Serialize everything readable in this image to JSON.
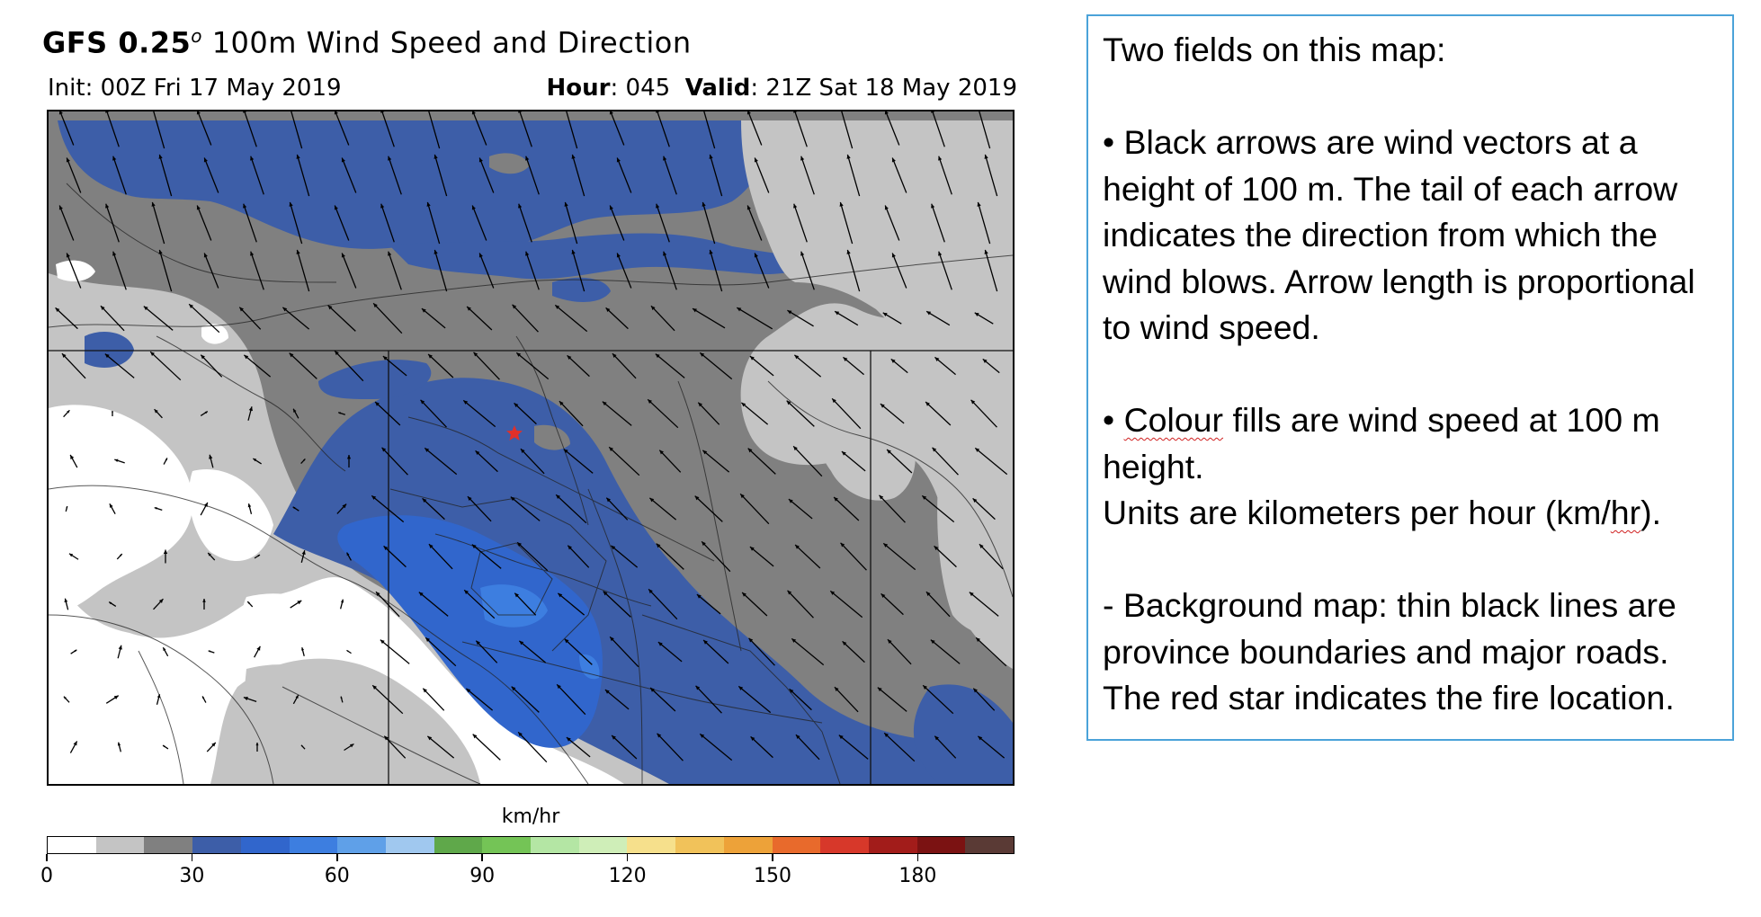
{
  "figure": {
    "title_model": "GFS 0.25",
    "title_degree": "o",
    "title_rest": " 100m  Wind Speed and Direction",
    "init": "Init: 00Z Fri 17 May 2019",
    "hour_label": "Hour",
    "hour_value": ": 045",
    "valid_label": "Valid",
    "valid_value": ": 21Z Sat 18 May 2019"
  },
  "colorbar": {
    "unit_label": "km/hr",
    "tick_labels": [
      "0",
      "30",
      "60",
      "90",
      "120",
      "150",
      "180"
    ],
    "tick_values": [
      0,
      30,
      60,
      90,
      120,
      150,
      180
    ],
    "range": [
      0,
      200
    ],
    "step": 10,
    "colors": [
      "#ffffff",
      "#c4c4c4",
      "#808080",
      "#3d5ea8",
      "#3166cc",
      "#3d7ee0",
      "#5fa0e8",
      "#a0c8ef",
      "#5fa84a",
      "#74c456",
      "#b4e6a4",
      "#cfeeb8",
      "#f6e08c",
      "#f1c25a",
      "#eda239",
      "#e86a2c",
      "#d7382a",
      "#a21c1a",
      "#7b1212",
      "#5a3a35"
    ]
  },
  "map": {
    "marker": "red-star",
    "marker_color": "#e0302a",
    "arrow_color": "#000000"
  },
  "info": {
    "line1": "Two fields on this map:",
    "bullet1": "• Black arrows are wind vectors at a height of 100 m.  The tail of each arrow indicates the direction from which the wind blows. Arrow length is proportional to wind speed.",
    "bullet2_word": "Colour",
    "bullet2_pre": "• ",
    "bullet2_rest": " fills are wind speed at 100 m height.",
    "units_pre": "Units are kilometers per hour (km/",
    "units_hr": "hr",
    "units_post": ").",
    "background": "- Background map: thin black lines are province boundaries and major roads. The red star indicates the fire location."
  }
}
